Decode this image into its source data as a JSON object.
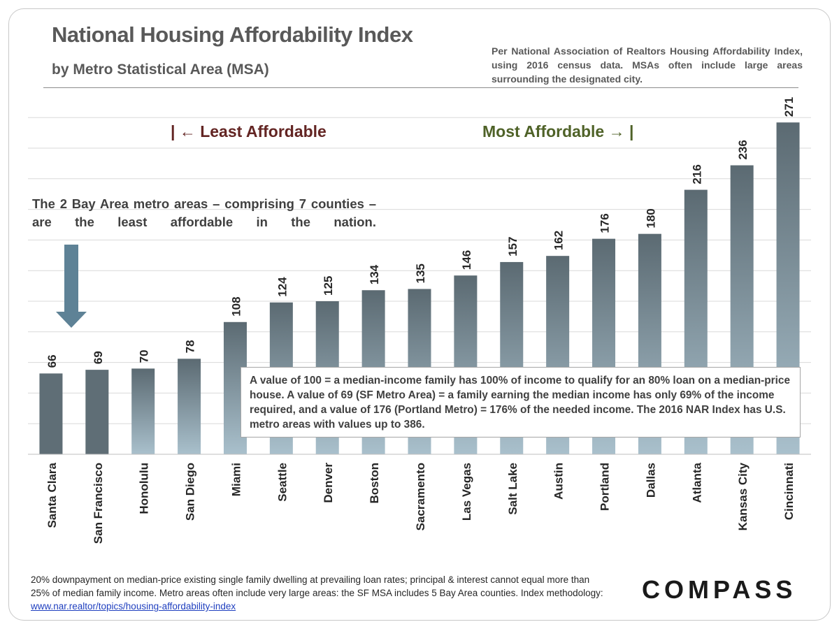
{
  "header": {
    "title": "National Housing Affordability Index",
    "subtitle": "by Metro Statistical Area (MSA)",
    "note": "Per National Association of Realtors Housing Affordability Index, using 2016 census data. MSAs often include large areas surrounding the designated city."
  },
  "annotations": {
    "least": "| ← Least Affordable",
    "most": "Most Affordable → |",
    "bay_area": "The 2 Bay Area metro areas – comprising 7 counties – are the least affordable in the nation.",
    "explanation": "A value of 100 = a median-income family has 100% of income to qualify for an 80% loan on a median-price house. A value of 69 (SF Metro Area) = a family earning the median income has only 69% of the income required, and a value of 176 (Portland Metro) = 176% of the needed income. The 2016 NAR Index has U.S. metro areas with values up to 386."
  },
  "footnote": {
    "text": "20% downpayment on median-price existing single family dwelling at prevailing loan rates; principal & interest cannot equal more than 25% of median family income. Metro areas often include very large areas: the SF MSA includes 5 Bay Area counties. Index methodology: ",
    "link": "www.nar.realtor/topics/housing-affordability-index"
  },
  "logo": "COMPASS",
  "colors": {
    "bar_dark_top": "#5f6e76",
    "bar_dark_bottom": "#5f6e76",
    "bar_top": "#5b6a72",
    "bar_bottom": "#a9c0cc",
    "grid": "#d9d9d9",
    "arrow": "#5e8296"
  },
  "chart_data": {
    "type": "bar",
    "title": "National Housing Affordability Index",
    "categories": [
      "Santa Clara",
      "San Francisco",
      "Honolulu",
      "San Diego",
      "Miami",
      "Seattle",
      "Denver",
      "Boston",
      "Sacramento",
      "Las Vegas",
      "Salt Lake",
      "Austin",
      "Portland",
      "Dallas",
      "Atlanta",
      "Kansas City",
      "Cincinnati"
    ],
    "values": [
      66,
      69,
      70,
      78,
      108,
      124,
      125,
      134,
      135,
      146,
      157,
      162,
      176,
      180,
      216,
      236,
      271
    ],
    "highlighted": [
      "Santa Clara",
      "San Francisco"
    ],
    "ylim": [
      0,
      275
    ],
    "gridlines": true,
    "data_labels": true,
    "xlabel": "",
    "ylabel": ""
  }
}
